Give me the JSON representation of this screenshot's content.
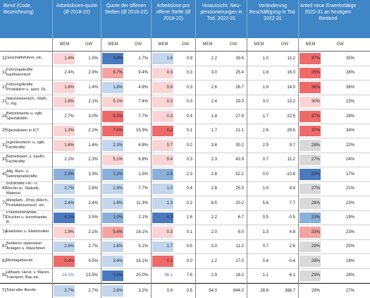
{
  "header": {
    "beruf": "Beruf (Code, Bezeichnung)",
    "col1": "Arbeitslosen-quote (Ø 2018-22)",
    "col2": "Quote der offenen Stellen (Ø 2018-22)",
    "col3": "Arbeitslose pro offene Stelle (Ø 2018-22)",
    "col4": "Voraussicht. Neu-pensionierungen in Tsd. 2022-31",
    "col5": "Veränderung Beschäftigung in Tsd. 2022-31",
    "col6": "Anteil neue Erwerbstätige 2022-31 an heutigem Bestand"
  },
  "sub": [
    "MEM",
    "GW",
    "MEM",
    "GW",
    "MEM",
    "GW",
    "MEM",
    "GW",
    "MEM",
    "GW",
    "MEM",
    "GW"
  ],
  "rows": [
    {
      "code": "11",
      "name": "Geschäftsführer, etc.",
      "v": [
        "1.4%",
        "1.5%",
        "0.8%",
        "1.7%",
        "1.6",
        "0.9",
        "2.2",
        "39.6",
        "1.0",
        "11.2",
        "37%",
        "35%"
      ]
    },
    {
      "code": "12",
      "name": "Führungskräfte kaufmännisch",
      "v": [
        "2.4%",
        "2.9%",
        "6.7%",
        "9.4%",
        "0.3",
        "0.3",
        "3.0",
        "25.4",
        "1.8",
        "16.0",
        "35%",
        "28%"
      ]
    },
    {
      "code": "13",
      "name": "Führungskräfte Produktion u. spez. DL",
      "v": [
        "1.6%",
        "1.4%",
        "1.8%",
        "4.8%",
        "0.9",
        "0.3",
        "2.6",
        "26.7",
        "1.9",
        "14.0",
        "36%",
        "36%"
      ]
    },
    {
      "code": "21",
      "name": "Naturwissensch., Math. u. Ing.",
      "v": [
        "1.6%",
        "2.1%",
        "5.1%",
        "7.4%",
        "0.3",
        "0.3",
        "2.4",
        "19.0",
        "3.0",
        "13.2",
        "30%",
        "23%"
      ]
    },
    {
      "code": "24",
      "name": "Betriebswirte u. vglb. Spezialisten",
      "v": [
        "2.7%",
        "3.0%",
        "8.3%",
        "7.7%",
        "0.3",
        "0.4",
        "1.8",
        "27.9",
        "1.7",
        "22.5",
        "37%",
        "28%"
      ]
    },
    {
      "code": "25",
      "name": "Spezialisten in ICT",
      "v": [
        "1.3%",
        "2.1%",
        "7.6%",
        "15.3%",
        "0.2",
        "0.1",
        "1.7",
        "21.1",
        "2.6",
        "29.5",
        "37%",
        "34%"
      ]
    },
    {
      "code": "31",
      "name": "Ingenieurtech. u. vglb. Fachkräfte",
      "v": [
        "1.6%",
        "1.4%",
        "2.3%",
        "6.8%",
        "0.7",
        "0.2",
        "3.8",
        "30.2",
        "2.9",
        "9.7",
        "28%",
        "22%"
      ]
    },
    {
      "code": "33",
      "name": "Betriebswirt. u. kaufm. Fachkräfte",
      "v": [
        "2.2%",
        "2.3%",
        "5.1%",
        "6.8%",
        "0.4",
        "0.3",
        "2.3",
        "43.9",
        "0.7",
        "11.2",
        "27%",
        "24%"
      ]
    },
    {
      "code": "41",
      "name": "Allg. Büro- u. Sekretariatskräfte",
      "v": [
        "2.9%",
        "3.3%",
        "1.2%",
        "1.5%",
        "2.5",
        "2.3",
        "2.8",
        "52.2",
        "0.0",
        "-10.8",
        "22%",
        "17%"
      ]
    },
    {
      "code": "43",
      "name": "Bürokräfte Fin.- u. Rechn.w., Statistik, Material",
      "v": [
        "2.7%",
        "2.8%",
        "2.8%",
        "7.7%",
        "1.0",
        "0.4",
        "2.8",
        "25.3",
        "1.0",
        "4.4",
        "27%",
        "21%"
      ]
    },
    {
      "code": "72",
      "name": "Metallarb., (Poly-)Mech., Produktionsmech. etc.",
      "v": [
        "2.4%",
        "2.4%",
        "1.8%",
        "11.3%",
        "1.3",
        "0.2",
        "8.5",
        "20.2",
        "5.6",
        "7.7",
        "28%",
        "23%"
      ]
    },
    {
      "code": "73",
      "name": "Präzisionshandw., Drucker u. kunsthandw. B.",
      "v": [
        "4.2%",
        "3.5%",
        "1.0%",
        "2.1%",
        "4.3",
        "1.6",
        "2.2",
        "6.7",
        "0.5",
        "-0.5",
        "23%",
        "19%"
      ]
    },
    {
      "code": "74",
      "name": "Elektriker u. Elektroniker",
      "v": [
        "1.9%",
        "2.1%",
        "5.6%",
        "16.1%",
        "0.3",
        "0.1",
        "2.0",
        "8.0",
        "1.3",
        "4.8",
        "33%",
        "23%"
      ]
    },
    {
      "code": "81",
      "name": "Bediener stationärer Anlagen u. Maschinen",
      "v": [
        "2.6%",
        "2.7%",
        "1.6%",
        "5.1%",
        "1.7",
        "0.5",
        "3.0",
        "11.2",
        "0.7",
        "2.6",
        "29%",
        "25%"
      ]
    },
    {
      "code": "82",
      "name": "Montageberufe",
      "v": [
        "0.4%",
        "0.5%",
        "3.6%",
        "18.1%",
        "0.1",
        "0.0",
        "1.2",
        "17.0",
        "0.4",
        "-0.4",
        "29%",
        "18%"
      ]
    },
    {
      "code": "93",
      "name": "Hilfsarb. Herst. v. Waren, Transport, Bau etc.",
      "v": [
        "14.1%",
        "13.5%",
        "0.5%",
        "20.0%",
        "36.1",
        "7.6",
        "2.9",
        "18.2",
        "1.1",
        "6.1",
        "29%",
        "28%"
      ]
    }
  ],
  "total": {
    "code": "TOT",
    "name": "Total aller Berufe",
    "v": [
      "2.7%",
      "2.7%",
      "2.6%",
      "3.2%",
      "0.9",
      "0.5",
      "54.0",
      "844.0",
      "28.6",
      "366.7",
      "29%",
      "27%"
    ]
  },
  "colors": {
    "header": "#3f86c6",
    "blue_strong": "#4a79c0",
    "blue_mid": "#8ab0da",
    "blue_light": "#c3d6ee",
    "red_strong": "#ee6a6a",
    "red_mid": "#f4a3a3",
    "red_light": "#fad4d4",
    "grey": "#d9d9d9"
  }
}
